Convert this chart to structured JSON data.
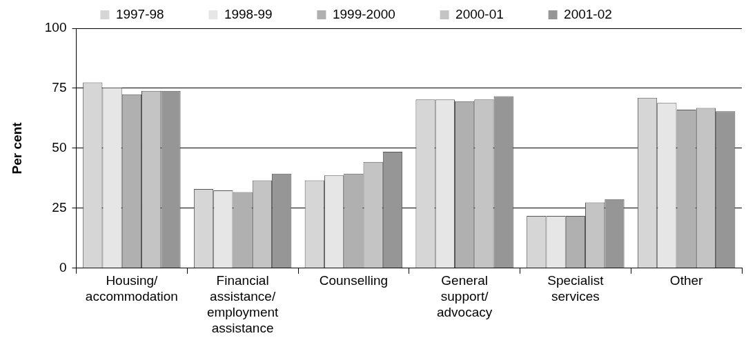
{
  "chart_data": {
    "type": "bar",
    "ylabel": "Per cent",
    "categories": [
      "Housing/\naccommodation",
      "Financial\nassistance/\nemployment\nassistance",
      "Counselling",
      "General\nsupport/\nadvocacy",
      "Specialist\nservices",
      "Other"
    ],
    "series": [
      {
        "name": "1997-98",
        "color": "#d6d6d6",
        "values": [
          77.4,
          33,
          36.6,
          70.3,
          21.8,
          71
        ]
      },
      {
        "name": "1998-99",
        "color": "#e6e6e6",
        "values": [
          75.3,
          32.4,
          38.7,
          70.3,
          21.8,
          68.9
        ]
      },
      {
        "name": "1999-2000",
        "color": "#b0b0b0",
        "values": [
          72.5,
          31.7,
          39.4,
          69.6,
          21.8,
          66.1
        ]
      },
      {
        "name": "2000-01",
        "color": "#c4c4c4",
        "values": [
          73.9,
          36.6,
          44.3,
          70.3,
          27.4,
          66.8
        ]
      },
      {
        "name": "2001-02",
        "color": "#969696",
        "values": [
          73.9,
          39.4,
          48.5,
          71.7,
          28.8,
          65.4
        ]
      }
    ],
    "ylim": [
      0,
      100
    ],
    "yticks": [
      0,
      25,
      50,
      75,
      100
    ],
    "grid": "y",
    "legend": "top"
  }
}
